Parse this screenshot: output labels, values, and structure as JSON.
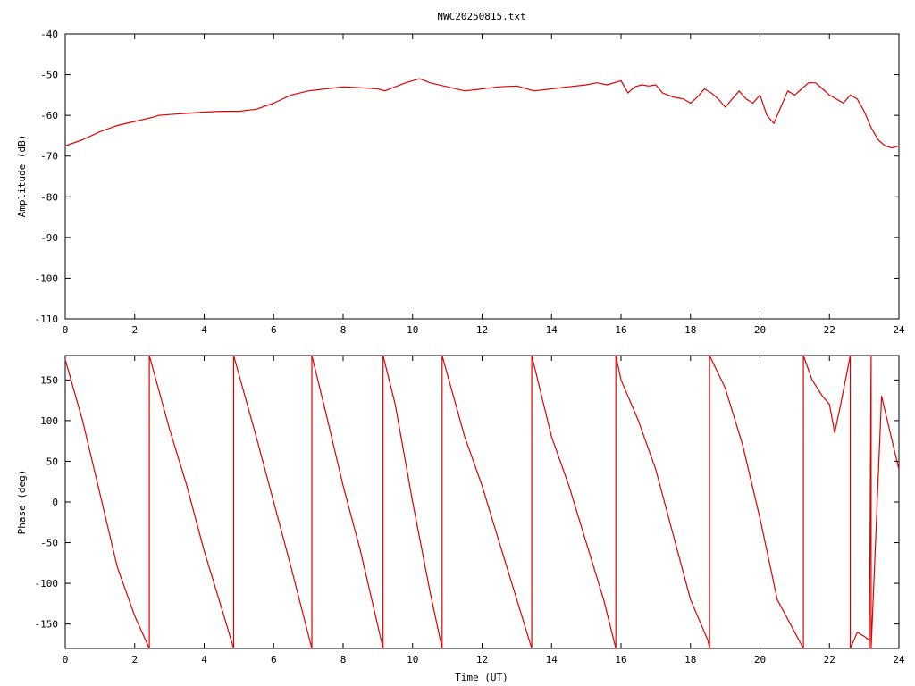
{
  "title": "NWC20250815.txt",
  "colors": {
    "trace": "#e00000",
    "axis": "#000000",
    "background": "#ffffff"
  },
  "chart_data": [
    {
      "type": "line",
      "ylabel": "Amplitude (dB)",
      "xlim": [
        0,
        24
      ],
      "ylim": [
        -110,
        -40
      ],
      "xticks": [
        "0",
        "2",
        "4",
        "6",
        "8",
        "10",
        "12",
        "14",
        "16",
        "18",
        "20",
        "22",
        "24"
      ],
      "yticks": [
        "-40",
        "-50",
        "-60",
        "-70",
        "-80",
        "-90",
        "-100",
        "-110"
      ],
      "series": [
        {
          "x": [
            0,
            0.5,
            1,
            1.5,
            2,
            2.5,
            2.7,
            3,
            3.5,
            4,
            4.5,
            5,
            5.5,
            6,
            6.5,
            7,
            7.5,
            8,
            8.5,
            9,
            9.2,
            9.5,
            9.8,
            10,
            10.2,
            10.5,
            11,
            11.5,
            12,
            12.5,
            13,
            13.5,
            14,
            14.5,
            15,
            15.3,
            15.6,
            15.8,
            16,
            16.2,
            16.4,
            16.6,
            16.8,
            17,
            17.2,
            17.5,
            17.8,
            18,
            18.2,
            18.4,
            18.6,
            18.8,
            19,
            19.2,
            19.4,
            19.6,
            19.8,
            20,
            20.2,
            20.4,
            20.6,
            20.8,
            21,
            21.2,
            21.4,
            21.6,
            21.8,
            22,
            22.2,
            22.4,
            22.6,
            22.8,
            23,
            23.2,
            23.4,
            23.6,
            23.8,
            24
          ],
          "y": [
            -67.5,
            -66,
            -64,
            -62.5,
            -61.5,
            -60.5,
            -60,
            -59.8,
            -59.5,
            -59.2,
            -59,
            -59,
            -58.5,
            -57,
            -55,
            -54,
            -53.5,
            -53,
            -53.2,
            -53.5,
            -54,
            -53,
            -52,
            -51.5,
            -51,
            -52,
            -53,
            -54,
            -53.5,
            -53,
            -52.8,
            -54,
            -53.5,
            -53,
            -52.5,
            -52,
            -52.5,
            -52,
            -51.5,
            -54.5,
            -53,
            -52.5,
            -52.8,
            -52.5,
            -54.5,
            -55.5,
            -56,
            -57,
            -55.5,
            -53.5,
            -54.5,
            -56,
            -58,
            -56,
            -54,
            -56,
            -57,
            -55,
            -60,
            -62,
            -58,
            -54,
            -55,
            -53.5,
            -52,
            -52,
            -53.5,
            -55,
            -56,
            -57,
            -55,
            -56,
            -59,
            -63,
            -66,
            -67.5,
            -68,
            -67.5
          ]
        }
      ]
    },
    {
      "type": "line",
      "ylabel": "Phase (deg)",
      "xlabel": "Time (UT)",
      "xlim": [
        0,
        24
      ],
      "ylim": [
        -180,
        180
      ],
      "xticks": [
        "0",
        "2",
        "4",
        "6",
        "8",
        "10",
        "12",
        "14",
        "16",
        "18",
        "20",
        "22",
        "24"
      ],
      "yticks": [
        "150",
        "100",
        "50",
        "0",
        "-50",
        "-100",
        "-150"
      ],
      "series": [
        {
          "x": [
            0,
            0.5,
            1,
            1.5,
            2,
            2.42,
            2.42,
            3,
            3.5,
            4,
            4.5,
            4.85,
            4.85,
            5.5,
            6,
            6.5,
            7.1,
            7.1,
            7.5,
            8,
            8.5,
            9.15,
            9.15,
            9.5,
            10,
            10.5,
            10.85,
            10.85,
            11.5,
            12,
            12.5,
            13,
            13.43,
            13.43,
            14,
            14.5,
            15,
            15.5,
            15.85,
            15.85,
            16,
            16.5,
            17,
            17.5,
            18,
            18.5,
            18.55,
            18.55,
            19,
            19.5,
            20,
            20.5,
            21,
            21.25,
            21.25,
            21.5,
            21.8,
            22,
            22.15,
            22.3,
            22.6,
            22.6,
            22.8,
            23,
            23.15,
            23.15,
            23.2,
            23.2,
            23.5,
            24
          ],
          "y": [
            175,
            100,
            10,
            -80,
            -140,
            -180,
            180,
            90,
            20,
            -60,
            -130,
            -180,
            180,
            80,
            0,
            -80,
            -180,
            180,
            110,
            20,
            -60,
            -180,
            180,
            120,
            0,
            -110,
            -180,
            180,
            80,
            20,
            -50,
            -120,
            -180,
            180,
            80,
            20,
            -50,
            -120,
            -180,
            180,
            150,
            100,
            40,
            -40,
            -120,
            -170,
            -180,
            180,
            140,
            70,
            -20,
            -120,
            -160,
            -180,
            180,
            150,
            130,
            120,
            85,
            115,
            180,
            -180,
            -160,
            -165,
            -170,
            -180,
            180,
            -180,
            130,
            40
          ]
        }
      ]
    }
  ]
}
